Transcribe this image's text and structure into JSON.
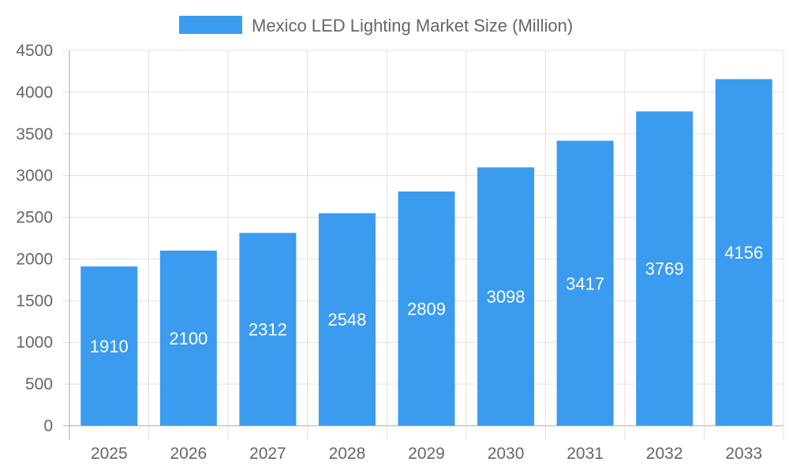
{
  "chart_data": {
    "type": "bar",
    "title": "",
    "xlabel": "",
    "ylabel": "",
    "categories": [
      "2025",
      "2026",
      "2027",
      "2028",
      "2029",
      "2030",
      "2031",
      "2032",
      "2033"
    ],
    "series": [
      {
        "name": "Mexico LED Lighting Market Size (Million)",
        "values": [
          1910,
          2100,
          2312,
          2548,
          2809,
          3098,
          3417,
          3769,
          4156
        ]
      }
    ],
    "ylim": [
      0,
      4500
    ],
    "yticks": [
      0,
      500,
      1000,
      1500,
      2000,
      2500,
      3000,
      3500,
      4000,
      4500
    ],
    "grid": true,
    "legend": "top",
    "data_labels": true,
    "colors": {
      "bar": "#3a9bef",
      "grid": "#e0e0e0",
      "axis": "#aaaaaa",
      "text": "#666666"
    }
  }
}
